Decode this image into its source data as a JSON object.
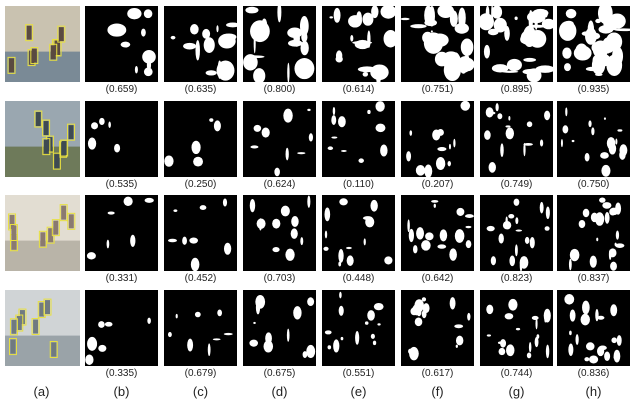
{
  "columns": [
    "(a)",
    "(b)",
    "(c)",
    "(d)",
    "(e)",
    "(f)",
    "(g)",
    "(h)"
  ],
  "rows": [
    {
      "scores": [
        "(0.659)",
        "(0.635)",
        "(0.800)",
        "(0.614)",
        "(0.751)",
        "(0.895)",
        "(0.935)"
      ]
    },
    {
      "scores": [
        "(0.535)",
        "(0.250)",
        "(0.624)",
        "(0.110)",
        "(0.207)",
        "(0.749)",
        "(0.750)"
      ]
    },
    {
      "scores": [
        "(0.331)",
        "(0.452)",
        "(0.703)",
        "(0.448)",
        "(0.642)",
        "(0.823)",
        "(0.837)"
      ]
    },
    {
      "scores": [
        "(0.335)",
        "(0.679)",
        "(0.675)",
        "(0.551)",
        "(0.617)",
        "(0.744)",
        "(0.836)"
      ]
    }
  ]
}
